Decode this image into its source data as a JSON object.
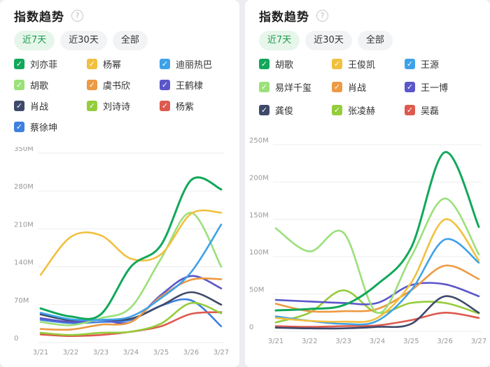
{
  "left_panel": {
    "title": "指数趋势",
    "help_icon": "?",
    "tabs": [
      {
        "label": "近7天",
        "active": true
      },
      {
        "label": "近30天",
        "active": false
      },
      {
        "label": "全部",
        "active": false
      }
    ],
    "legend_check": "✓",
    "legend": [
      {
        "name": "刘亦菲",
        "color": "#12a85a"
      },
      {
        "name": "杨幂",
        "color": "#f1c03e"
      },
      {
        "name": "迪丽热巴",
        "color": "#3fa2e8"
      },
      {
        "name": "胡歌",
        "color": "#9be07a"
      },
      {
        "name": "虞书欣",
        "color": "#ec9a43"
      },
      {
        "name": "王鹤棣",
        "color": "#5b56c9"
      },
      {
        "name": "肖战",
        "color": "#3e4a6a"
      },
      {
        "name": "刘诗诗",
        "color": "#94cc3a"
      },
      {
        "name": "杨紫",
        "color": "#dd5a4e"
      },
      {
        "name": "蔡徐坤",
        "color": "#3f7fe0"
      }
    ]
  },
  "right_panel": {
    "title": "指数趋势",
    "help_icon": "?",
    "tabs": [
      {
        "label": "近7天",
        "active": true
      },
      {
        "label": "近30天",
        "active": false
      },
      {
        "label": "全部",
        "active": false
      }
    ],
    "legend_check": "✓",
    "legend": [
      {
        "name": "胡歌",
        "color": "#12a85a"
      },
      {
        "name": "王俊凯",
        "color": "#f1c03e"
      },
      {
        "name": "王源",
        "color": "#3fa2e8"
      },
      {
        "name": "易烊千玺",
        "color": "#9be07a"
      },
      {
        "name": "肖战",
        "color": "#ec9a43"
      },
      {
        "name": "王一博",
        "color": "#5b56c9"
      },
      {
        "name": "龚俊",
        "color": "#3e4a6a"
      },
      {
        "name": "张凌赫",
        "color": "#94cc3a"
      },
      {
        "name": "吴磊",
        "color": "#dd5a4e"
      }
    ]
  },
  "chart_data": [
    {
      "type": "line",
      "title": "指数趋势",
      "x": [
        "3/21",
        "3/22",
        "3/23",
        "3/24",
        "3/25",
        "3/26",
        "3/27"
      ],
      "yticks": [
        "0",
        "70M",
        "140M",
        "210M",
        "280M",
        "350M"
      ],
      "ylim": [
        0,
        350
      ],
      "unit": "M",
      "series": [
        {
          "name": "刘亦菲",
          "color": "#12a85a",
          "values": [
            63,
            48,
            52,
            140,
            180,
            300,
            283
          ]
        },
        {
          "name": "杨幂",
          "color": "#f1c03e",
          "values": [
            125,
            195,
            198,
            155,
            163,
            238,
            240
          ]
        },
        {
          "name": "迪丽热巴",
          "color": "#3fa2e8",
          "values": [
            55,
            43,
            42,
            48,
            82,
            130,
            218
          ]
        },
        {
          "name": "胡歌",
          "color": "#9be07a",
          "values": [
            38,
            32,
            45,
            65,
            155,
            240,
            140
          ]
        },
        {
          "name": "虞书欣",
          "color": "#ec9a43",
          "values": [
            25,
            24,
            33,
            38,
            85,
            116,
            117
          ]
        },
        {
          "name": "王鹤棣",
          "color": "#5b56c9",
          "values": [
            45,
            38,
            42,
            38,
            88,
            123,
            100
          ]
        },
        {
          "name": "肖战",
          "color": "#3e4a6a",
          "values": [
            52,
            41,
            42,
            44,
            68,
            93,
            70
          ]
        },
        {
          "name": "刘诗诗",
          "color": "#94cc3a",
          "values": [
            18,
            14,
            18,
            20,
            35,
            73,
            54
          ]
        },
        {
          "name": "杨紫",
          "color": "#dd5a4e",
          "values": [
            15,
            12,
            14,
            20,
            30,
            53,
            56
          ]
        },
        {
          "name": "蔡徐坤",
          "color": "#3f7fe0",
          "values": [
            42,
            36,
            38,
            42,
            68,
            78,
            30
          ]
        }
      ]
    },
    {
      "type": "line",
      "title": "指数趋势",
      "x": [
        "3/21",
        "3/22",
        "3/23",
        "3/24",
        "3/25",
        "3/26",
        "3/27"
      ],
      "yticks": [
        "0",
        "50M",
        "100M",
        "150M",
        "200M",
        "250M"
      ],
      "ylim": [
        0,
        250
      ],
      "unit": "M",
      "series": [
        {
          "name": "胡歌",
          "color": "#12a85a",
          "values": [
            28,
            30,
            35,
            63,
            112,
            240,
            140
          ]
        },
        {
          "name": "王俊凯",
          "color": "#f1c03e",
          "values": [
            18,
            14,
            13,
            18,
            65,
            150,
            95
          ]
        },
        {
          "name": "王源",
          "color": "#3fa2e8",
          "values": [
            20,
            14,
            10,
            14,
            55,
            123,
            92
          ]
        },
        {
          "name": "易烊千玺",
          "color": "#9be07a",
          "values": [
            138,
            107,
            132,
            25,
            100,
            178,
            103
          ]
        },
        {
          "name": "肖战",
          "color": "#ec9a43",
          "values": [
            37,
            27,
            27,
            30,
            55,
            88,
            70
          ]
        },
        {
          "name": "王一博",
          "color": "#5b56c9",
          "values": [
            42,
            40,
            38,
            38,
            62,
            63,
            47
          ]
        },
        {
          "name": "龚俊",
          "color": "#3e4a6a",
          "values": [
            5,
            4,
            4,
            6,
            10,
            47,
            25
          ]
        },
        {
          "name": "张凌赫",
          "color": "#94cc3a",
          "values": [
            12,
            25,
            55,
            25,
            38,
            38,
            24
          ]
        },
        {
          "name": "吴磊",
          "color": "#dd5a4e",
          "values": [
            7,
            6,
            7,
            8,
            15,
            25,
            18
          ]
        }
      ]
    }
  ]
}
